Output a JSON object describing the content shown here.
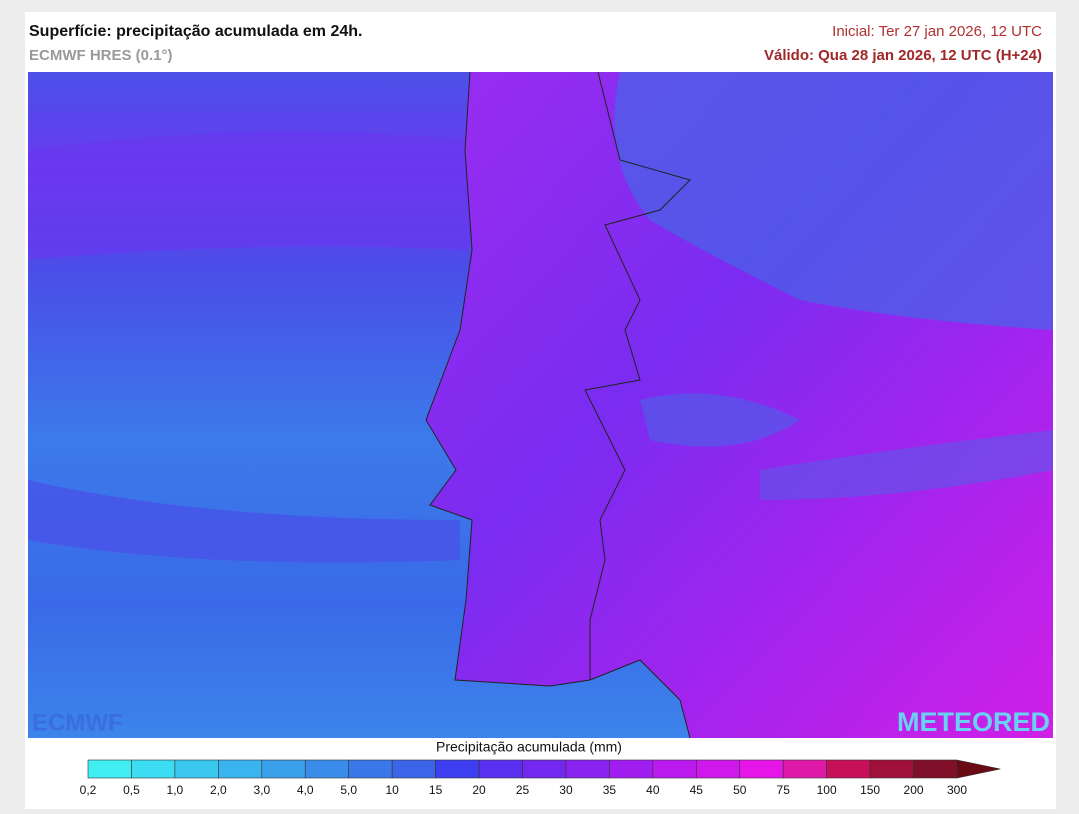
{
  "header": {
    "title": "Superfície: precipitação acumulada em 24h.",
    "subtitle": "ECMWF HRES (0.1°)",
    "init": "Inicial: Ter 27 jan 2026, 12 UTC",
    "valid": "Válido: Qua 28 jan 2026, 12 UTC (H+24)"
  },
  "logos": {
    "left": "ECMWF",
    "right": "METEORED"
  },
  "legend": {
    "title": "Precipitação acumulada (mm)",
    "labels": [
      "0,2",
      "0,5",
      "1,0",
      "2,0",
      "3,0",
      "4,0",
      "5,0",
      "10",
      "15",
      "20",
      "25",
      "30",
      "35",
      "40",
      "45",
      "50",
      "75",
      "100",
      "150",
      "200",
      "300"
    ],
    "colors": [
      "#40eef2",
      "#3cdcf2",
      "#3bc8f0",
      "#3ab4ee",
      "#3aa0ec",
      "#3a8ceb",
      "#3a78ea",
      "#3c64e8",
      "#3d3ef0",
      "#5a30f0",
      "#7228f0",
      "#8a22f0",
      "#a21ef0",
      "#ba1aee",
      "#d018ec",
      "#e616e8",
      "#e01aa8",
      "#c8105a",
      "#a0103a",
      "#80102a"
    ],
    "arrow_color": "#6a0a14"
  }
}
